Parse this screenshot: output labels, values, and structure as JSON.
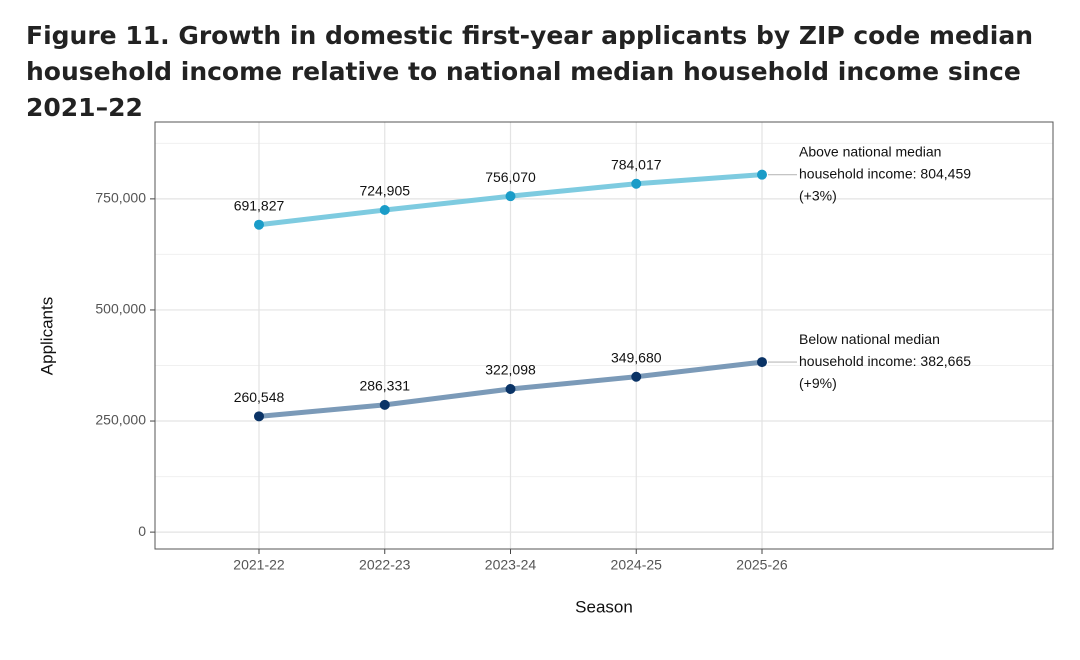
{
  "chart_data": {
    "type": "line",
    "title": "Figure 11. Growth in domestic first-year applicants by ZIP code median household income relative to national median household income since 2021–22",
    "x_label": "Season",
    "y_label": "Applicants",
    "categories": [
      "2021-22",
      "2022-23",
      "2023-24",
      "2024-25",
      "2025-26"
    ],
    "series": [
      {
        "name": "Above national median household income",
        "color": "#7ecbe0",
        "marker_color": "#1a9cc8",
        "values": [
          691827,
          724905,
          756070,
          784017,
          804459
        ],
        "value_labels": [
          "691,827",
          "724,905",
          "756,070",
          "784,017",
          null
        ],
        "annotation": [
          "Above national median",
          "household income: 804,459",
          "(+3%)"
        ]
      },
      {
        "name": "Below national median household income",
        "color": "#7b9ab8",
        "marker_color": "#0a3366",
        "values": [
          260548,
          286331,
          322098,
          349680,
          382665
        ],
        "value_labels": [
          "260,548",
          "286,331",
          "322,098",
          "349,680",
          null
        ],
        "annotation": [
          "Below national median",
          "household income: 382,665",
          "(+9%)"
        ]
      }
    ],
    "ylim": [
      -38000,
      923000
    ],
    "yticks": [
      0,
      {
        "value": 250000,
        "label": "250,000"
      },
      {
        "value": 500000,
        "label": "500,000"
      },
      {
        "value": 750000,
        "label": "750,000"
      }
    ],
    "minor_yticks": [
      125000,
      375000,
      625000,
      875000
    ],
    "grid": true
  }
}
